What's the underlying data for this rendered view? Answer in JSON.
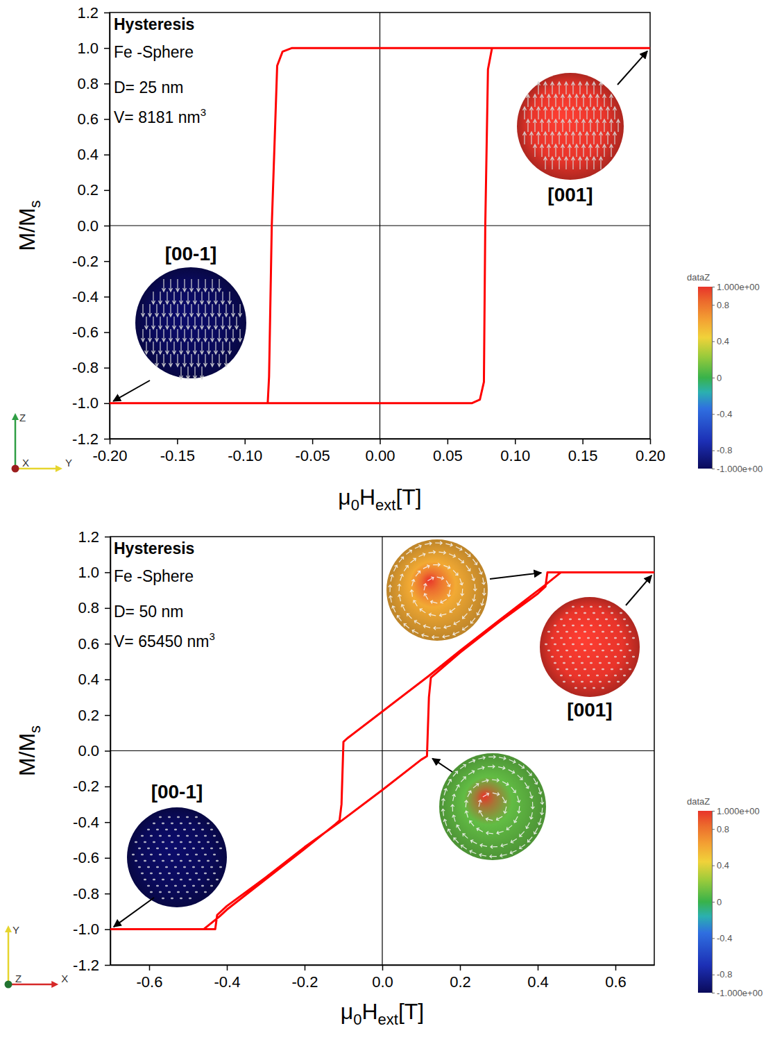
{
  "chart_data": [
    {
      "type": "line",
      "title": "Hysteresis",
      "annotations": [
        {
          "text": "Fe -Sphere"
        },
        {
          "text": "D= 25 nm"
        },
        {
          "text": "V= 8181 nm",
          "sup": "3"
        }
      ],
      "x_label": [
        "μ",
        "0",
        "H",
        "ext",
        "[T]"
      ],
      "y_label": [
        "M/M",
        "s"
      ],
      "xlim": [
        -0.2,
        0.2
      ],
      "xticks": [
        {
          "value": -0.2,
          "label": "-0.20"
        },
        {
          "value": -0.15,
          "label": "-0.15"
        },
        {
          "value": -0.1,
          "label": "-0.10"
        },
        {
          "value": -0.05,
          "label": "-0.05"
        },
        {
          "value": 0,
          "label": "0.00"
        },
        {
          "value": 0.05,
          "label": "0.05"
        },
        {
          "value": 0.1,
          "label": "0.10"
        },
        {
          "value": 0.15,
          "label": "0.15"
        },
        {
          "value": 0.2,
          "label": "0.20"
        }
      ],
      "ylim": [
        -1.2,
        1.2
      ],
      "yticks": [
        -1.2,
        {
          "value": -1,
          "label": "-1.0"
        },
        -0.8,
        -0.6,
        -0.4,
        -0.2,
        {
          "value": 0,
          "label": "0.0"
        },
        0.2,
        0.4,
        0.6,
        0.8,
        {
          "value": 1,
          "label": "1.0"
        },
        1.2
      ],
      "x": [
        0.2,
        0,
        -0.065,
        -0.072,
        -0.076,
        -0.08,
        -0.082,
        -0.083,
        -0.2,
        0,
        0.068,
        0.074,
        0.077,
        0.078,
        0.08,
        0.083,
        0.2
      ],
      "series": [
        {
          "color": "#ff0000",
          "values": [
            1,
            1,
            1,
            0.98,
            0.9,
            0,
            -0.85,
            -1,
            -1,
            -1,
            -1,
            -0.98,
            -0.88,
            0,
            0.88,
            1,
            1
          ]
        }
      ],
      "insets": [
        {
          "label": "[001]",
          "marker": "uniform",
          "dataZ": 1,
          "at": [
            0.2,
            1
          ]
        },
        {
          "label": "[00-1]",
          "marker": "uniform",
          "dataZ": -1,
          "at": [
            -0.2,
            -1
          ]
        }
      ],
      "colorbar": {
        "label": "dataZ",
        "lim": [
          -1,
          1
        ],
        "ticks": [
          {
            "value": 1,
            "label": "1.000e+00"
          },
          0.8,
          0.4,
          0,
          -0.4,
          -0.8,
          {
            "value": -1,
            "label": "-1.000e+00"
          }
        ]
      },
      "triad": {
        "up": "Z",
        "out": "X",
        "right": "Y"
      }
    },
    {
      "type": "line",
      "title": "Hysteresis",
      "annotations": [
        {
          "text": "Fe -Sphere"
        },
        {
          "text": "D= 50 nm"
        },
        {
          "text": "V= 65450 nm",
          "sup": "3"
        }
      ],
      "x_label": [
        "μ",
        "0",
        "H",
        "ext",
        "[T]"
      ],
      "y_label": [
        "M/M",
        "s"
      ],
      "xlim": [
        -0.7,
        0.7
      ],
      "xticks": [
        -0.6,
        -0.4,
        -0.2,
        {
          "value": 0,
          "label": "0.0"
        },
        0.2,
        0.4,
        0.6
      ],
      "ylim": [
        -1.2,
        1.2
      ],
      "yticks": [
        -1.2,
        {
          "value": -1,
          "label": "-1.0"
        },
        -0.8,
        -0.6,
        -0.4,
        -0.2,
        {
          "value": 0,
          "label": "0.0"
        },
        0.2,
        0.4,
        0.6,
        0.8,
        {
          "value": 1,
          "label": "1.0"
        },
        1.2
      ],
      "x": [
        0.7,
        0.46,
        0.42,
        0.3,
        0.2,
        0.12,
        0,
        -0.09,
        -0.1,
        -0.105,
        -0.11,
        -0.12,
        -0.2,
        -0.3,
        -0.4,
        -0.42,
        -0.46,
        -0.7,
        -0.43,
        -0.425,
        -0.4,
        -0.3,
        -0.2,
        -0.11,
        0,
        0.1,
        0.115,
        0.12,
        0.125,
        0.2,
        0.3,
        0.4,
        0.42,
        0.425,
        0.7
      ],
      "series": [
        {
          "color": "#ff0000",
          "values": [
            1,
            1,
            0.93,
            0.73,
            0.56,
            0.42,
            0.22,
            0.07,
            0.05,
            -0.3,
            -0.39,
            -0.41,
            -0.55,
            -0.72,
            -0.89,
            -0.93,
            -1,
            -1,
            -1,
            -0.92,
            -0.87,
            -0.71,
            -0.54,
            -0.4,
            -0.22,
            -0.05,
            -0.03,
            0.3,
            0.41,
            0.55,
            0.72,
            0.88,
            0.92,
            1,
            1
          ]
        }
      ],
      "insets": [
        {
          "marker": "vortex",
          "dataZ": 0.6,
          "at": [
            0.42,
            1
          ]
        },
        {
          "label": "[001]",
          "marker": "uniform",
          "dataZ": 1,
          "at": [
            0.7,
            1
          ]
        },
        {
          "marker": "vortex",
          "dataZ": 0.1,
          "at": [
            0.12,
            -0.03
          ]
        },
        {
          "label": "[00-1]",
          "marker": "uniform",
          "dataZ": -1,
          "at": [
            -0.7,
            -1
          ]
        }
      ],
      "colorbar": {
        "label": "dataZ",
        "lim": [
          -1,
          1
        ],
        "ticks": [
          {
            "value": 1,
            "label": "1.000e+00"
          },
          0.8,
          0.4,
          0,
          -0.4,
          -0.8,
          {
            "value": -1,
            "label": "-1.000e+00"
          }
        ]
      },
      "triad": {
        "up": "Y",
        "out": "Z",
        "right": "X"
      }
    }
  ]
}
